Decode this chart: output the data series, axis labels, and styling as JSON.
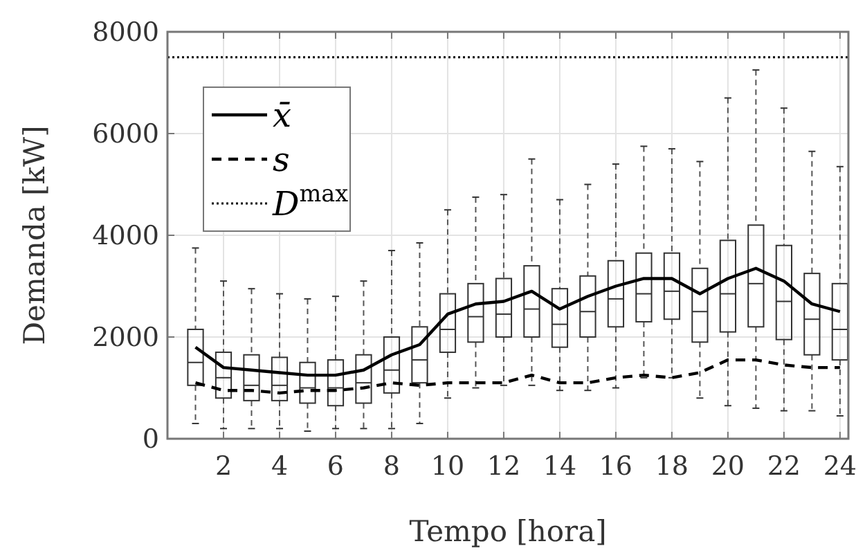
{
  "chart_data": {
    "type": "box",
    "xlabel": "Tempo [hora]",
    "ylabel": "Demanda [kW]",
    "x": [
      1,
      2,
      3,
      4,
      5,
      6,
      7,
      8,
      9,
      10,
      11,
      12,
      13,
      14,
      15,
      16,
      17,
      18,
      19,
      20,
      21,
      22,
      23,
      24
    ],
    "xlim": [
      0,
      24.3
    ],
    "xticks": [
      2,
      4,
      6,
      8,
      10,
      12,
      14,
      16,
      18,
      20,
      22,
      24
    ],
    "ylim": [
      0,
      8000
    ],
    "yticks": [
      0,
      2000,
      4000,
      6000,
      8000
    ],
    "grid": true,
    "legend": "top left",
    "series": [
      {
        "color": "#333333",
        "boxes": [
          {
            "low": 300,
            "q1": 1050,
            "median": 1500,
            "q3": 2150,
            "high": 3750
          },
          {
            "low": 200,
            "q1": 800,
            "median": 1200,
            "q3": 1700,
            "high": 3100
          },
          {
            "low": 200,
            "q1": 750,
            "median": 1050,
            "q3": 1650,
            "high": 2950
          },
          {
            "low": 200,
            "q1": 750,
            "median": 1050,
            "q3": 1600,
            "high": 2850
          },
          {
            "low": 150,
            "q1": 700,
            "median": 1000,
            "q3": 1500,
            "high": 2750
          },
          {
            "low": 200,
            "q1": 650,
            "median": 1000,
            "q3": 1550,
            "high": 2800
          },
          {
            "low": 200,
            "q1": 700,
            "median": 1100,
            "q3": 1650,
            "high": 3100
          },
          {
            "low": 200,
            "q1": 900,
            "median": 1350,
            "q3": 2000,
            "high": 3700
          },
          {
            "low": 300,
            "q1": 1100,
            "median": 1550,
            "q3": 2200,
            "high": 3850
          },
          {
            "low": 800,
            "q1": 1700,
            "median": 2150,
            "q3": 2850,
            "high": 4500
          },
          {
            "low": 1000,
            "q1": 1900,
            "median": 2400,
            "q3": 3050,
            "high": 4750
          },
          {
            "low": 1050,
            "q1": 2000,
            "median": 2450,
            "q3": 3150,
            "high": 4800
          },
          {
            "low": 1050,
            "q1": 2000,
            "median": 2550,
            "q3": 3400,
            "high": 5500
          },
          {
            "low": 950,
            "q1": 1800,
            "median": 2250,
            "q3": 2950,
            "high": 4700
          },
          {
            "low": 950,
            "q1": 2000,
            "median": 2500,
            "q3": 3200,
            "high": 5000
          },
          {
            "low": 1000,
            "q1": 2200,
            "median": 2750,
            "q3": 3500,
            "high": 5400
          },
          {
            "low": 1200,
            "q1": 2300,
            "median": 2850,
            "q3": 3650,
            "high": 5750
          },
          {
            "low": 1200,
            "q1": 2350,
            "median": 2900,
            "q3": 3650,
            "high": 5700
          },
          {
            "low": 800,
            "q1": 1900,
            "median": 2500,
            "q3": 3350,
            "high": 5450
          },
          {
            "low": 650,
            "q1": 2100,
            "median": 2850,
            "q3": 3900,
            "high": 6700
          },
          {
            "low": 600,
            "q1": 2200,
            "median": 3050,
            "q3": 4200,
            "high": 7250
          },
          {
            "low": 550,
            "q1": 1950,
            "median": 2700,
            "q3": 3800,
            "high": 6500
          },
          {
            "low": 550,
            "q1": 1650,
            "median": 2350,
            "q3": 3250,
            "high": 5650
          },
          {
            "low": 450,
            "q1": 1550,
            "median": 2150,
            "q3": 3050,
            "high": 5350
          }
        ]
      },
      {
        "type": "line",
        "name": "x̄",
        "color": "#000000",
        "line_style": "solid",
        "values": [
          1800,
          1400,
          1350,
          1300,
          1250,
          1250,
          1350,
          1650,
          1850,
          2450,
          2650,
          2700,
          2900,
          2550,
          2800,
          3000,
          3150,
          3150,
          2850,
          3150,
          3350,
          3100,
          2650,
          2500
        ]
      },
      {
        "type": "line",
        "name": "s",
        "color": "#000000",
        "line_style": "dashed",
        "values": [
          1100,
          950,
          950,
          900,
          950,
          950,
          1000,
          1100,
          1050,
          1100,
          1100,
          1100,
          1250,
          1100,
          1100,
          1200,
          1250,
          1200,
          1300,
          1550,
          1550,
          1450,
          1400,
          1400
        ]
      }
    ],
    "ref_lines": [
      {
        "axis": "y",
        "value": 7500,
        "label": "D$^{max}$",
        "line_style": "dotted",
        "color": "#000000"
      }
    ]
  }
}
